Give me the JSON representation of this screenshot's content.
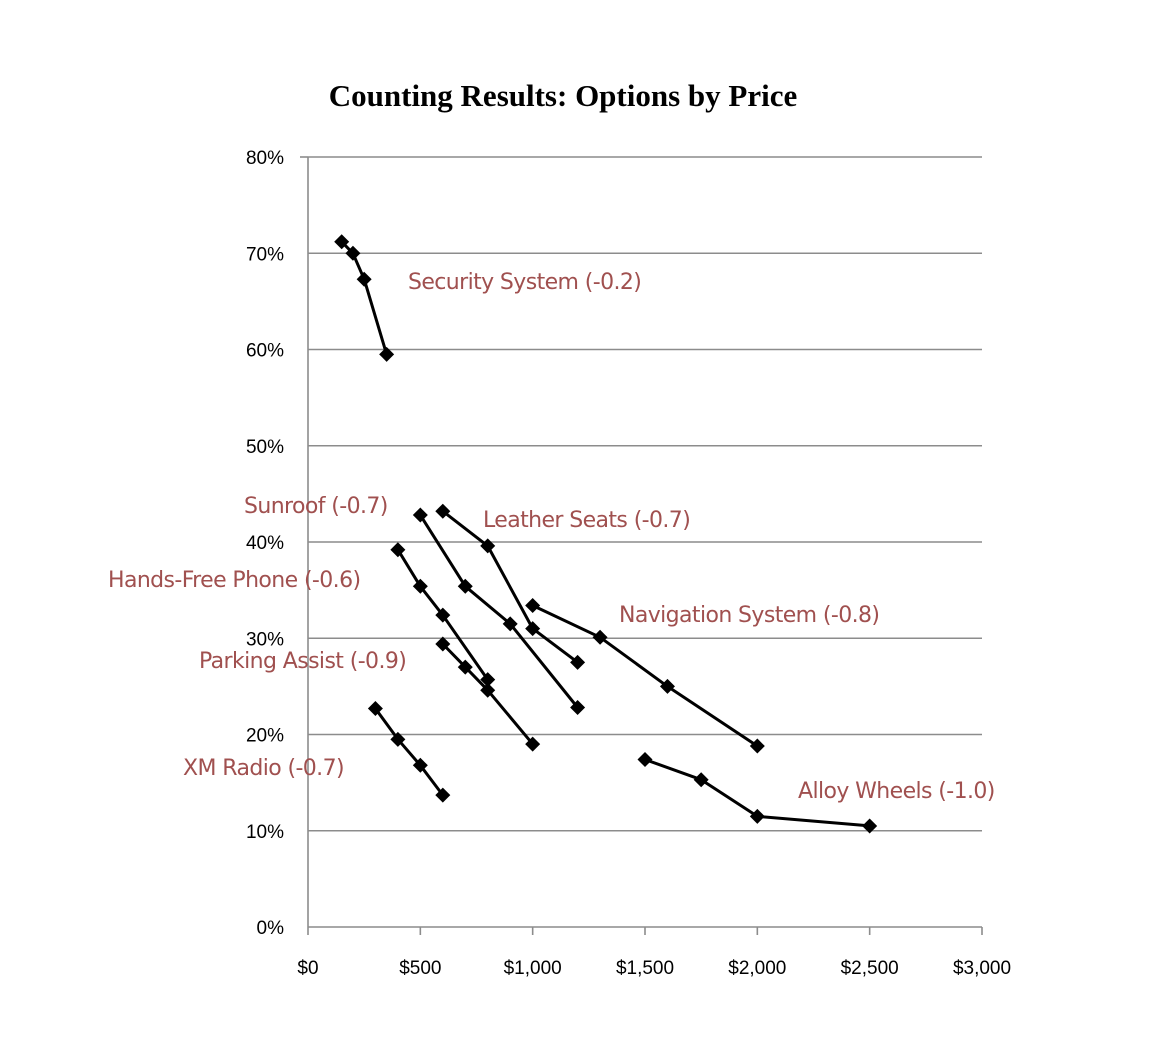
{
  "chart_data": {
    "type": "line",
    "title": "Counting Results: Options by Price",
    "xlabel": "",
    "ylabel": "",
    "xlim": [
      0,
      3000
    ],
    "ylim": [
      0,
      0.8
    ],
    "x_ticks": [
      0,
      500,
      1000,
      1500,
      2000,
      2500,
      3000
    ],
    "x_tick_labels": [
      "$0",
      "$500",
      "$1,000",
      "$1,500",
      "$2,000",
      "$2,500",
      "$3,000"
    ],
    "y_ticks": [
      0,
      0.1,
      0.2,
      0.3,
      0.4,
      0.5,
      0.6,
      0.7,
      0.8
    ],
    "y_tick_labels": [
      "0%",
      "10%",
      "20%",
      "30%",
      "40%",
      "50%",
      "60%",
      "70%",
      "80%"
    ],
    "grid": true,
    "legend": "none",
    "label_color": "#a0504f",
    "line_color": "#000000",
    "series": [
      {
        "name": "Security System (-0.2)",
        "x": [
          150,
          200,
          250,
          350
        ],
        "y": [
          0.712,
          0.7,
          0.673,
          0.595
        ]
      },
      {
        "name": "Sunroof (-0.7)",
        "x": [
          500,
          700,
          900,
          1200
        ],
        "y": [
          0.428,
          0.354,
          0.315,
          0.228
        ]
      },
      {
        "name": "Leather Seats (-0.7)",
        "x": [
          600,
          800,
          1000,
          1200
        ],
        "y": [
          0.432,
          0.396,
          0.31,
          0.275
        ]
      },
      {
        "name": "Hands-Free Phone (-0.6)",
        "x": [
          400,
          500,
          600,
          800
        ],
        "y": [
          0.392,
          0.354,
          0.324,
          0.257
        ]
      },
      {
        "name": "Navigation System (-0.8)",
        "x": [
          1000,
          1300,
          1600,
          2000
        ],
        "y": [
          0.334,
          0.301,
          0.25,
          0.188
        ]
      },
      {
        "name": "Parking Assist (-0.9)",
        "x": [
          600,
          700,
          800,
          1000
        ],
        "y": [
          0.294,
          0.27,
          0.246,
          0.19
        ]
      },
      {
        "name": "XM Radio (-0.7)",
        "x": [
          300,
          400,
          500,
          600
        ],
        "y": [
          0.227,
          0.195,
          0.168,
          0.137
        ]
      },
      {
        "name": "Alloy Wheels (-1.0)",
        "x": [
          1500,
          1750,
          2000,
          2500
        ],
        "y": [
          0.174,
          0.153,
          0.115,
          0.105
        ]
      }
    ]
  }
}
